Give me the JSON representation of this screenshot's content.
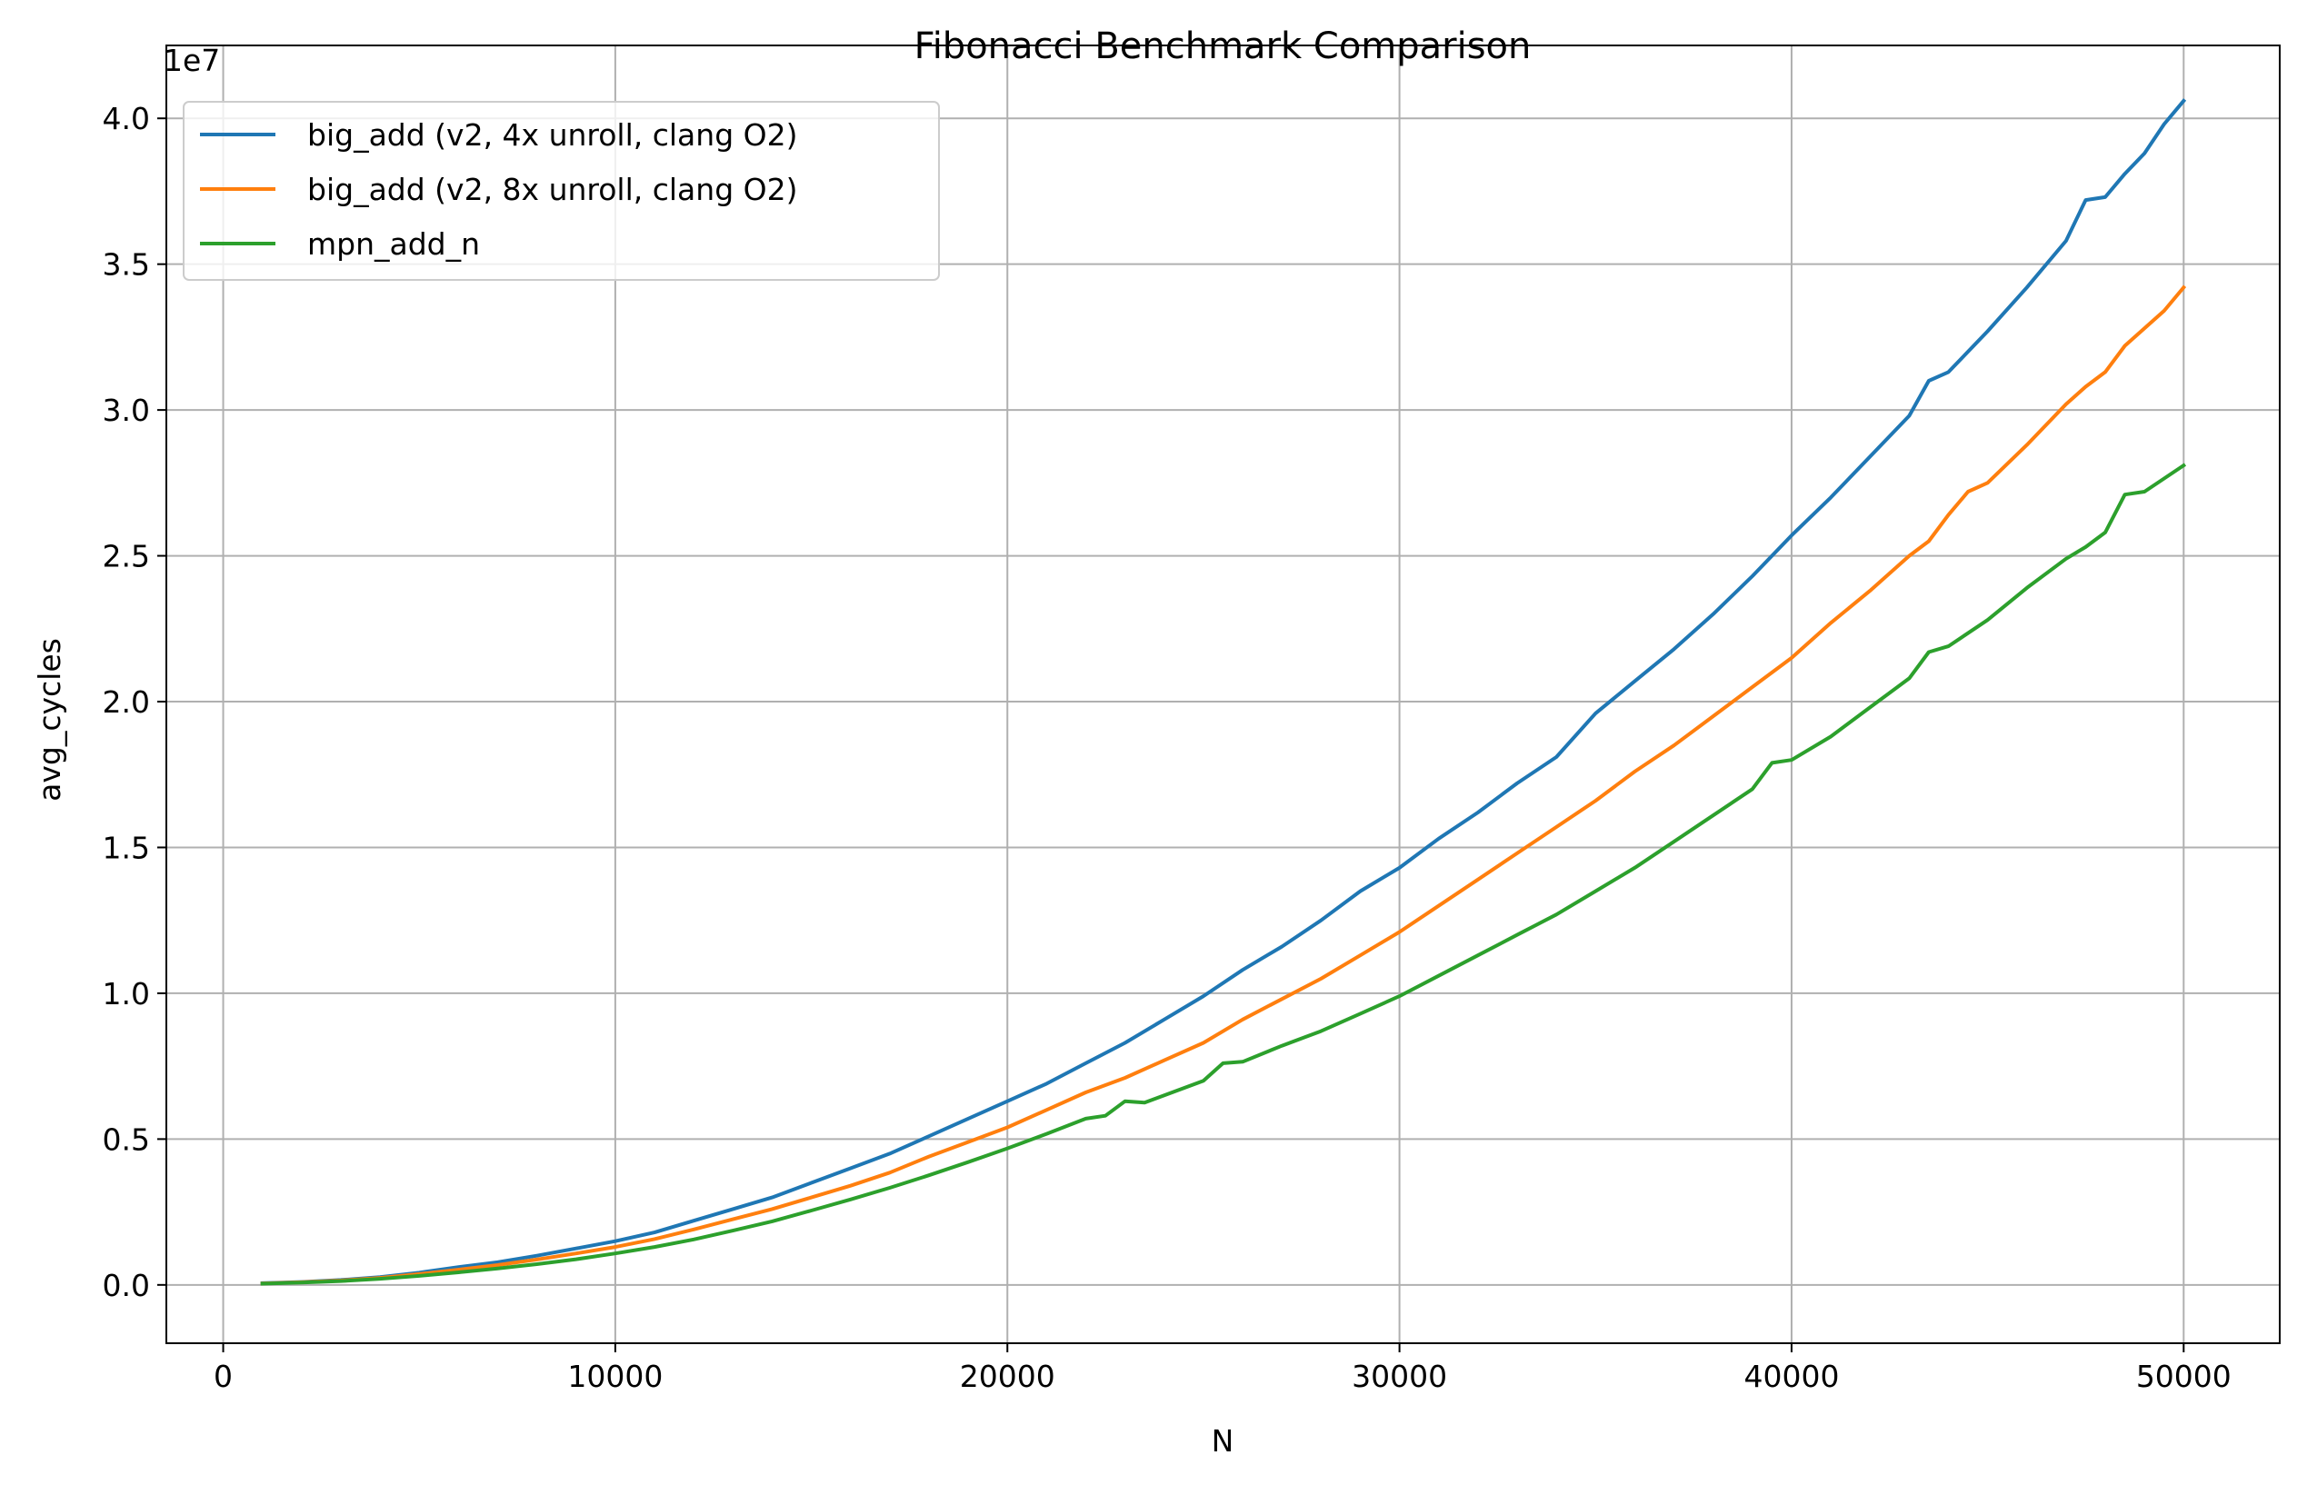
{
  "chart_data": {
    "type": "line",
    "title": "Fibonacci Benchmark Comparison",
    "xlabel": "N",
    "ylabel": "avg_cycles",
    "y_offset_label": "1e7",
    "y_scale_factor": 10000000,
    "xlim": [
      -1450,
      52450
    ],
    "ylim": [
      -2000000,
      42500000
    ],
    "xticks": [
      0,
      10000,
      20000,
      30000,
      40000,
      50000
    ],
    "xtick_labels": [
      "0",
      "10000",
      "20000",
      "30000",
      "40000",
      "50000"
    ],
    "yticks": [
      0,
      5000000,
      10000000,
      15000000,
      20000000,
      25000000,
      30000000,
      35000000,
      40000000
    ],
    "ytick_labels": [
      "0.0",
      "0.5",
      "1.0",
      "1.5",
      "2.0",
      "2.5",
      "3.0",
      "3.5",
      "4.0"
    ],
    "grid": true,
    "legend_position": "upper-left",
    "series": [
      {
        "name": "big_add (v2, 4x unroll, clang O2)",
        "color": "#1f77b4",
        "x": [
          1000,
          2000,
          3000,
          4000,
          5000,
          6000,
          7000,
          8000,
          9000,
          10000,
          11000,
          12000,
          13000,
          14000,
          15000,
          16000,
          17000,
          18000,
          19000,
          20000,
          21000,
          22000,
          23000,
          24000,
          25000,
          26000,
          27000,
          28000,
          29000,
          30000,
          31000,
          32000,
          33000,
          34000,
          35000,
          36000,
          37000,
          38000,
          39000,
          40000,
          41000,
          42000,
          43000,
          43500,
          44000,
          45000,
          46000,
          47000,
          47500,
          48000,
          48500,
          49000,
          49500,
          50000
        ],
        "y": [
          60000,
          100000,
          170000,
          270000,
          420000,
          610000,
          780000,
          1000000,
          1250000,
          1500000,
          1800000,
          2200000,
          2600000,
          3000000,
          3500000,
          4000000,
          4500000,
          5100000,
          5700000,
          6300000,
          6900000,
          7600000,
          8300000,
          9100000,
          9900000,
          10800000,
          11600000,
          12500000,
          13500000,
          14300000,
          15300000,
          16200000,
          17200000,
          18100000,
          19600000,
          20700000,
          21800000,
          23000000,
          24300000,
          25700000,
          27000000,
          28400000,
          29800000,
          31000000,
          31300000,
          32700000,
          34200000,
          35800000,
          37200000,
          37300000,
          38100000,
          38800000,
          39800000,
          40600000
        ]
      },
      {
        "name": "big_add (v2, 8x unroll, clang O2)",
        "color": "#ff7f0e",
        "x": [
          1000,
          2000,
          3000,
          4000,
          5000,
          6000,
          7000,
          8000,
          9000,
          10000,
          11000,
          12000,
          13000,
          14000,
          15000,
          16000,
          17000,
          18000,
          19000,
          20000,
          21000,
          22000,
          23000,
          24000,
          25000,
          26000,
          27000,
          28000,
          29000,
          30000,
          31000,
          32000,
          33000,
          34000,
          35000,
          36000,
          37000,
          38000,
          39000,
          40000,
          41000,
          42000,
          43000,
          43500,
          44000,
          44500,
          45000,
          46000,
          47000,
          47500,
          48000,
          48500,
          49000,
          49500,
          50000
        ],
        "y": [
          50000,
          90000,
          150000,
          240000,
          370000,
          520000,
          680000,
          870000,
          1080000,
          1300000,
          1570000,
          1900000,
          2250000,
          2600000,
          3000000,
          3400000,
          3850000,
          4400000,
          4900000,
          5400000,
          6000000,
          6600000,
          7100000,
          7700000,
          8300000,
          9100000,
          9800000,
          10500000,
          11300000,
          12100000,
          13000000,
          13900000,
          14800000,
          15700000,
          16600000,
          17600000,
          18500000,
          19500000,
          20500000,
          21500000,
          22700000,
          23800000,
          25000000,
          25500000,
          26400000,
          27200000,
          27500000,
          28800000,
          30200000,
          30800000,
          31300000,
          32200000,
          32800000,
          33400000,
          34200000
        ]
      },
      {
        "name": "mpn_add_n",
        "color": "#2ca02c",
        "x": [
          1000,
          2000,
          3000,
          4000,
          5000,
          6000,
          7000,
          8000,
          9000,
          10000,
          11000,
          12000,
          13000,
          14000,
          15000,
          16000,
          17000,
          18000,
          19000,
          20000,
          21000,
          22000,
          22500,
          23000,
          23500,
          24000,
          25000,
          25500,
          26000,
          27000,
          28000,
          29000,
          30000,
          31000,
          32000,
          33000,
          34000,
          35000,
          36000,
          37000,
          38000,
          39000,
          39500,
          40000,
          41000,
          42000,
          43000,
          43500,
          44000,
          45000,
          46000,
          47000,
          47500,
          48000,
          48500,
          49000,
          50000
        ],
        "y": [
          40000,
          80000,
          130000,
          210000,
          310000,
          430000,
          560000,
          710000,
          880000,
          1080000,
          1300000,
          1560000,
          1860000,
          2180000,
          2550000,
          2930000,
          3330000,
          3760000,
          4210000,
          4680000,
          5180000,
          5700000,
          5800000,
          6300000,
          6250000,
          6500000,
          7000000,
          7600000,
          7650000,
          8200000,
          8700000,
          9300000,
          9900000,
          10600000,
          11300000,
          12000000,
          12700000,
          13500000,
          14300000,
          15200000,
          16100000,
          17000000,
          17900000,
          18000000,
          18800000,
          19800000,
          20800000,
          21700000,
          21900000,
          22800000,
          23900000,
          24900000,
          25300000,
          25800000,
          27100000,
          27200000,
          28100000
        ]
      }
    ]
  }
}
